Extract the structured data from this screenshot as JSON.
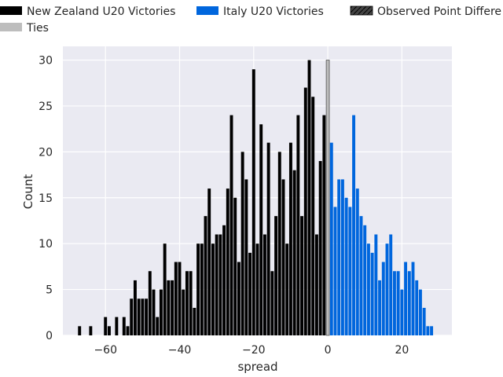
{
  "chart_data": {
    "type": "bar",
    "xlabel": "spread",
    "ylabel": "Count",
    "xlim": [
      -71.5,
      33.5
    ],
    "ylim": [
      0,
      31.5
    ],
    "x_ticks": [
      -60,
      -40,
      -20,
      0,
      20
    ],
    "x_tick_labels": [
      "−60",
      "−40",
      "−20",
      "0",
      "20"
    ],
    "y_ticks": [
      0,
      5,
      10,
      15,
      20,
      25,
      30
    ],
    "grid": true,
    "legend": {
      "placement": "top",
      "items": [
        {
          "label": "New Zealand U20 Victories",
          "color": "#000000"
        },
        {
          "label": "Italy U20 Victories",
          "color": "#0066dd"
        },
        {
          "label": "Observed Point Differe",
          "color": "#444444",
          "hatch": true
        },
        {
          "label": "Ties",
          "color": "#bdbdbd"
        }
      ]
    },
    "series": [
      {
        "name": "New Zealand U20 Victories",
        "color": "#000000",
        "x": [
          -67,
          -66,
          -65,
          -64,
          -63,
          -62,
          -61,
          -60,
          -59,
          -58,
          -57,
          -56,
          -55,
          -54,
          -53,
          -52,
          -51,
          -50,
          -49,
          -48,
          -47,
          -46,
          -45,
          -44,
          -43,
          -42,
          -41,
          -40,
          -39,
          -38,
          -37,
          -36,
          -35,
          -34,
          -33,
          -32,
          -31,
          -30,
          -29,
          -28,
          -27,
          -26,
          -25,
          -24,
          -23,
          -22,
          -21,
          -20,
          -19,
          -18,
          -17,
          -16,
          -15,
          -14,
          -13,
          -12,
          -11,
          -10,
          -9,
          -8,
          -7,
          -6,
          -5,
          -4,
          -3,
          -2,
          -1
        ],
        "values": [
          1,
          0,
          0,
          1,
          0,
          0,
          0,
          2,
          1,
          0,
          2,
          0,
          2,
          1,
          4,
          6,
          4,
          4,
          4,
          7,
          5,
          2,
          5,
          10,
          6,
          6,
          8,
          8,
          5,
          7,
          7,
          3,
          10,
          10,
          13,
          16,
          10,
          11,
          11,
          12,
          16,
          24,
          15,
          8,
          20,
          17,
          9,
          29,
          10,
          23,
          11,
          21,
          7,
          13,
          20,
          17,
          10,
          21,
          18,
          24,
          13,
          27,
          30,
          26,
          11,
          19,
          24
        ]
      },
      {
        "name": "Ties",
        "color": "#bdbdbd",
        "x": [
          0
        ],
        "values": [
          30
        ]
      },
      {
        "name": "Italy U20 Victories",
        "color": "#0066dd",
        "x": [
          1,
          2,
          3,
          4,
          5,
          6,
          7,
          8,
          9,
          10,
          11,
          12,
          13,
          14,
          15,
          16,
          17,
          18,
          19,
          20,
          21,
          22,
          23,
          24,
          25,
          26,
          27,
          28
        ],
        "values": [
          21,
          14,
          17,
          17,
          15,
          14,
          24,
          16,
          13,
          12,
          10,
          9,
          11,
          6,
          8,
          10,
          11,
          7,
          7,
          5,
          8,
          7,
          8,
          6,
          5,
          3,
          1,
          1
        ]
      }
    ]
  }
}
